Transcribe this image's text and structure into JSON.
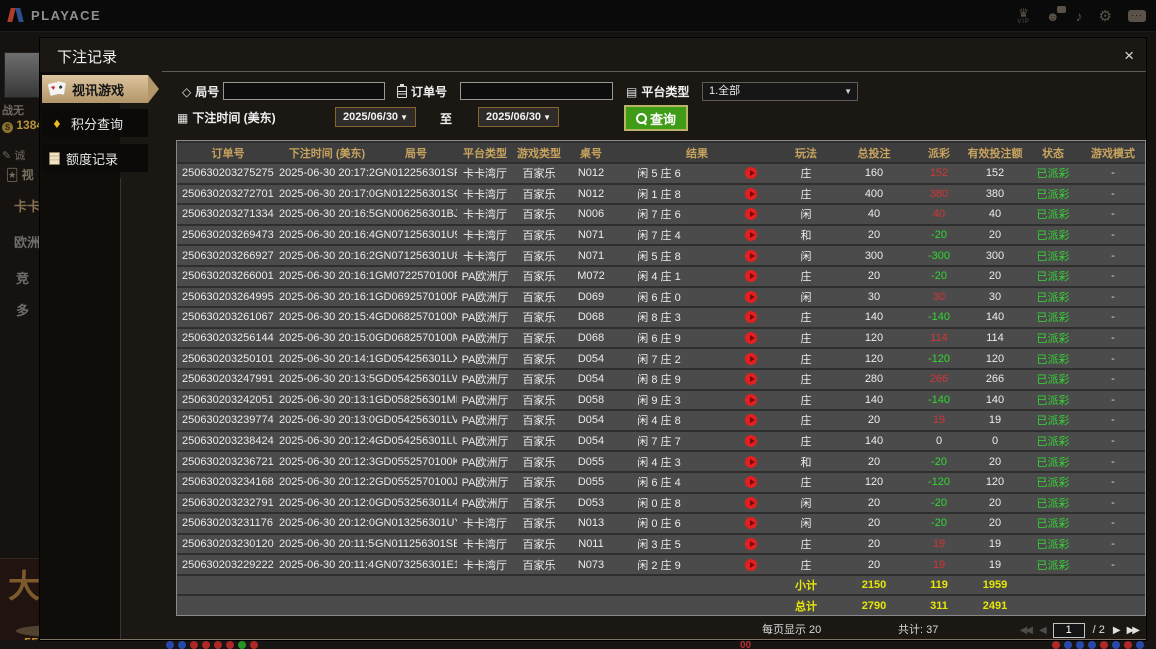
{
  "topbar": {
    "logo": "PLAYACE",
    "icons": {
      "vip_label": "VIP"
    }
  },
  "background": {
    "username": "战无",
    "balance": "1384",
    "verify_text": "诚",
    "video_label": "视",
    "menu_items": [
      "卡卡",
      "欧洲",
      "竞",
      "多"
    ],
    "poster_text": "大",
    "bottom_balance": "5504",
    "roulette_zero": "00",
    "road_dots_left": [
      "#2a52c8",
      "#2a52c8",
      "#c82a2a",
      "#c82a2a",
      "#c82a2a",
      "#c82a2a",
      "#28a828",
      "#c82a2a"
    ],
    "road_dots_right": [
      "#c82a2a",
      "#2a52c8",
      "#2a52c8",
      "#2a52c8",
      "#c82a2a",
      "#2a52c8",
      "#c82a2a",
      "#2a52c8"
    ]
  },
  "modal": {
    "title": "下注记录",
    "close_label": "×",
    "sidebar": [
      {
        "label": "视讯游戏",
        "icon": "cards-icon",
        "active": true
      },
      {
        "label": "积分查询",
        "icon": "gem-icon",
        "active": false
      },
      {
        "label": "额度记录",
        "icon": "document-icon",
        "active": false
      }
    ],
    "filters": {
      "round_label": "局号",
      "order_label": "订单号",
      "platform_label": "平台类型",
      "platform_value": "1.全部",
      "time_label": "下注时间 (美东)",
      "date_from": "2025/06/30",
      "to_separator": "至",
      "date_to": "2025/06/30",
      "search_label": "查询"
    },
    "table": {
      "headers": [
        "订单号",
        "下注时间 (美东)",
        "局号",
        "平台类型",
        "游戏类型",
        "桌号",
        "结果",
        "玩法",
        "总投注",
        "派彩",
        "有效投注额",
        "状态",
        "游戏模式"
      ],
      "rows": [
        {
          "order": "250630203275275",
          "time": "2025-06-30 20:17:27",
          "round": "GN012256301SP",
          "platform": "卡卡湾厅",
          "game": "百家乐",
          "table": "N012",
          "result": "闲 5 庄 6",
          "play": "庄",
          "bet": "160",
          "payout": "152",
          "valid": "152",
          "status": "已派彩",
          "mode": "-"
        },
        {
          "order": "250630203272701",
          "time": "2025-06-30 20:17:09",
          "round": "GN012256301SO",
          "platform": "卡卡湾厅",
          "game": "百家乐",
          "table": "N012",
          "result": "闲 1 庄 8",
          "play": "庄",
          "bet": "400",
          "payout": "380",
          "valid": "380",
          "status": "已派彩",
          "mode": "-"
        },
        {
          "order": "250630203271334",
          "time": "2025-06-30 20:16:59",
          "round": "GN006256301BJ",
          "platform": "卡卡湾厅",
          "game": "百家乐",
          "table": "N006",
          "result": "闲 7 庄 6",
          "play": "闲",
          "bet": "40",
          "payout": "40",
          "valid": "40",
          "status": "已派彩",
          "mode": "-"
        },
        {
          "order": "250630203269473",
          "time": "2025-06-30 20:16:44",
          "round": "GN071256301U9",
          "platform": "卡卡湾厅",
          "game": "百家乐",
          "table": "N071",
          "result": "闲 7 庄 4",
          "play": "和",
          "bet": "20",
          "payout": "-20",
          "valid": "20",
          "status": "已派彩",
          "mode": "-"
        },
        {
          "order": "250630203266927",
          "time": "2025-06-30 20:16:25",
          "round": "GN071256301U8",
          "platform": "卡卡湾厅",
          "game": "百家乐",
          "table": "N071",
          "result": "闲 5 庄 8",
          "play": "闲",
          "bet": "300",
          "payout": "-300",
          "valid": "300",
          "status": "已派彩",
          "mode": "-"
        },
        {
          "order": "250630203266001",
          "time": "2025-06-30 20:16:19",
          "round": "GM0722570100F",
          "platform": "PA欧洲厅",
          "game": "百家乐",
          "table": "M072",
          "result": "闲 4 庄 1",
          "play": "庄",
          "bet": "20",
          "payout": "-20",
          "valid": "20",
          "status": "已派彩",
          "mode": "-"
        },
        {
          "order": "250630203264995",
          "time": "2025-06-30 20:16:13",
          "round": "GD0692570100F",
          "platform": "PA欧洲厅",
          "game": "百家乐",
          "table": "D069",
          "result": "闲 6 庄 0",
          "play": "闲",
          "bet": "30",
          "payout": "30",
          "valid": "30",
          "status": "已派彩",
          "mode": "-"
        },
        {
          "order": "250630203261067",
          "time": "2025-06-30 20:15:44",
          "round": "GD0682570100N",
          "platform": "PA欧洲厅",
          "game": "百家乐",
          "table": "D068",
          "result": "闲 8 庄 3",
          "play": "庄",
          "bet": "140",
          "payout": "-140",
          "valid": "140",
          "status": "已派彩",
          "mode": "-"
        },
        {
          "order": "250630203256144",
          "time": "2025-06-30 20:15:01",
          "round": "GD0682570100M",
          "platform": "PA欧洲厅",
          "game": "百家乐",
          "table": "D068",
          "result": "闲 6 庄 9",
          "play": "庄",
          "bet": "120",
          "payout": "114",
          "valid": "114",
          "status": "已派彩",
          "mode": "-"
        },
        {
          "order": "250630203250101",
          "time": "2025-06-30 20:14:17",
          "round": "GD054256301LX",
          "platform": "PA欧洲厅",
          "game": "百家乐",
          "table": "D054",
          "result": "闲 7 庄 2",
          "play": "庄",
          "bet": "120",
          "payout": "-120",
          "valid": "120",
          "status": "已派彩",
          "mode": "-"
        },
        {
          "order": "250630203247991",
          "time": "2025-06-30 20:13:59",
          "round": "GD054256301LW",
          "platform": "PA欧洲厅",
          "game": "百家乐",
          "table": "D054",
          "result": "闲 8 庄 9",
          "play": "庄",
          "bet": "280",
          "payout": "266",
          "valid": "266",
          "status": "已派彩",
          "mode": "-"
        },
        {
          "order": "250630203242051",
          "time": "2025-06-30 20:13:16",
          "round": "GD058256301MF",
          "platform": "PA欧洲厅",
          "game": "百家乐",
          "table": "D058",
          "result": "闲 9 庄 3",
          "play": "庄",
          "bet": "140",
          "payout": "-140",
          "valid": "140",
          "status": "已派彩",
          "mode": "-"
        },
        {
          "order": "250630203239774",
          "time": "2025-06-30 20:13:04",
          "round": "GD054256301LV",
          "platform": "PA欧洲厅",
          "game": "百家乐",
          "table": "D054",
          "result": "闲 4 庄 8",
          "play": "庄",
          "bet": "20",
          "payout": "19",
          "valid": "19",
          "status": "已派彩",
          "mode": "-"
        },
        {
          "order": "250630203238424",
          "time": "2025-06-30 20:12:48",
          "round": "GD054256301LU",
          "platform": "PA欧洲厅",
          "game": "百家乐",
          "table": "D054",
          "result": "闲 7 庄 7",
          "play": "庄",
          "bet": "140",
          "payout": "0",
          "valid": "0",
          "status": "已派彩",
          "mode": "-"
        },
        {
          "order": "250630203236721",
          "time": "2025-06-30 20:12:39",
          "round": "GD0552570100K",
          "platform": "PA欧洲厅",
          "game": "百家乐",
          "table": "D055",
          "result": "闲 4 庄 3",
          "play": "和",
          "bet": "20",
          "payout": "-20",
          "valid": "20",
          "status": "已派彩",
          "mode": "-"
        },
        {
          "order": "250630203234168",
          "time": "2025-06-30 20:12:20",
          "round": "GD0552570100J",
          "platform": "PA欧洲厅",
          "game": "百家乐",
          "table": "D055",
          "result": "闲 6 庄 4",
          "play": "庄",
          "bet": "120",
          "payout": "-120",
          "valid": "120",
          "status": "已派彩",
          "mode": "-"
        },
        {
          "order": "250630203232791",
          "time": "2025-06-30 20:12:09",
          "round": "GD053256301L4",
          "platform": "PA欧洲厅",
          "game": "百家乐",
          "table": "D053",
          "result": "闲 0 庄 8",
          "play": "闲",
          "bet": "20",
          "payout": "-20",
          "valid": "20",
          "status": "已派彩",
          "mode": "-"
        },
        {
          "order": "250630203231176",
          "time": "2025-06-30 20:12:02",
          "round": "GN013256301UY",
          "platform": "卡卡湾厅",
          "game": "百家乐",
          "table": "N013",
          "result": "闲 0 庄 6",
          "play": "闲",
          "bet": "20",
          "payout": "-20",
          "valid": "20",
          "status": "已派彩",
          "mode": "-"
        },
        {
          "order": "250630203230120",
          "time": "2025-06-30 20:11:54",
          "round": "GN011256301SB",
          "platform": "卡卡湾厅",
          "game": "百家乐",
          "table": "N011",
          "result": "闲 3 庄 5",
          "play": "庄",
          "bet": "20",
          "payout": "19",
          "valid": "19",
          "status": "已派彩",
          "mode": "-"
        },
        {
          "order": "250630203229222",
          "time": "2025-06-30 20:11:46",
          "round": "GN073256301E1",
          "platform": "卡卡湾厅",
          "game": "百家乐",
          "table": "N073",
          "result": "闲 2 庄 9",
          "play": "庄",
          "bet": "20",
          "payout": "19",
          "valid": "19",
          "status": "已派彩",
          "mode": "-"
        }
      ],
      "subtotal": {
        "label": "小计",
        "bet": "2150",
        "payout": "119",
        "valid": "1959"
      },
      "total": {
        "label": "总计",
        "bet": "2790",
        "payout": "311",
        "valid": "2491"
      }
    },
    "pagination": {
      "per_page_label": "每页显示 20",
      "total_label": "共计: 37",
      "current_page": "1",
      "total_pages": "/ 2"
    },
    "colors": {
      "payout_positive": "#d23535",
      "payout_negative": "#32d832",
      "status_paid": "#35d435",
      "summary_text": "#e8e606",
      "active_tab": "#c9ad83",
      "search_button": "#3f9c17"
    }
  }
}
